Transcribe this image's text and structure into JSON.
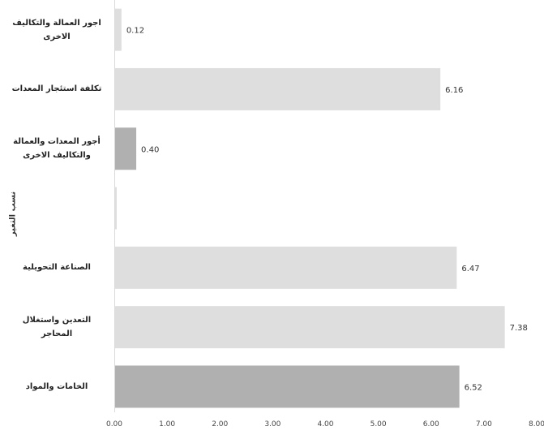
{
  "chart_data": {
    "type": "bar",
    "orientation": "horizontal",
    "ylabel": "نسب التغير",
    "xlim": [
      0,
      8
    ],
    "x_ticks": [
      "0.00",
      "1.00",
      "2.00",
      "3.00",
      "4.00",
      "5.00",
      "6.00",
      "7.00",
      "8.00"
    ],
    "categories": [
      "اجور العمالة والتكاليف الاخرى",
      "تكلفة استئجار المعدات",
      "أجور المعدات والعمالة والتكاليف الاخرى",
      "",
      "الصناعة التحويلية",
      "التعدين واستغلال المحاجر",
      "الخامات والمواد"
    ],
    "values": [
      0.12,
      6.16,
      0.4,
      0,
      6.47,
      7.38,
      6.52
    ],
    "value_labels": [
      "0.12",
      "6.16",
      "0.40",
      "",
      "6.47",
      "7.38",
      "6.52"
    ],
    "bar_colors": [
      "#dedede",
      "#dedede",
      "#b0b0b0",
      "#dedede",
      "#dedede",
      "#dedede",
      "#b0b0b0"
    ],
    "grid": false,
    "legend": "none"
  }
}
